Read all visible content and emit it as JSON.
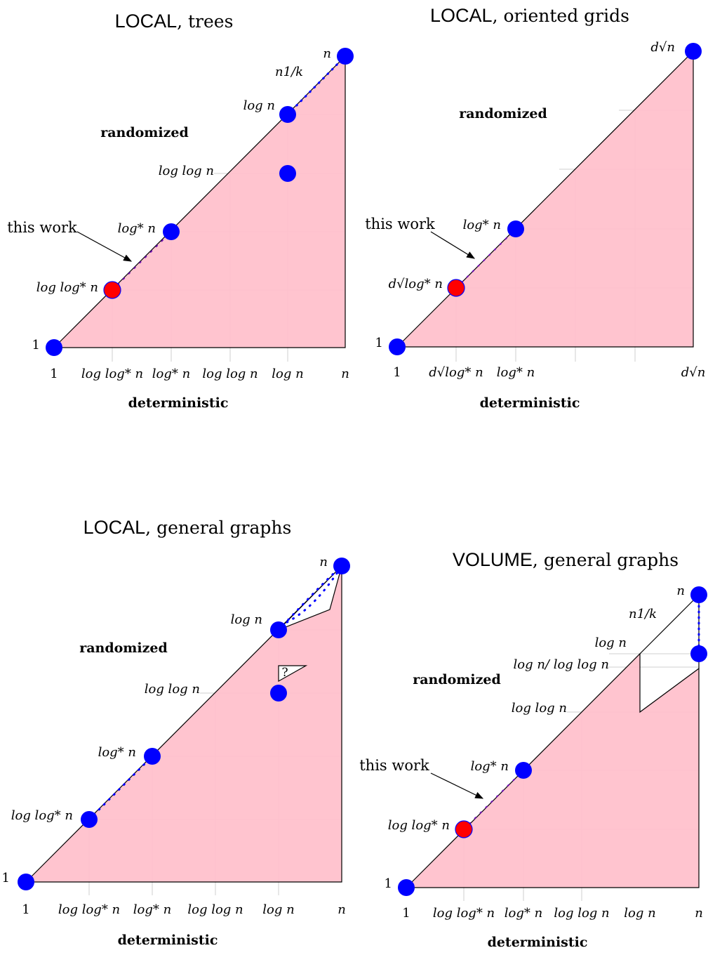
{
  "colors": {
    "region_fill": "#ffc0cb",
    "grid": "#cfcfcf",
    "node_blue": "#0000ff",
    "node_red": "#ff0000",
    "outline": "#000000"
  },
  "panels": [
    {
      "title_main": "LOCAL",
      "title_rest": ", trees",
      "y_caption": "randomized",
      "x_caption": "deterministic",
      "x_ticks": [
        "1",
        "log log* n",
        "log* n",
        "log log n",
        "log n",
        "n"
      ],
      "y_ticks": [
        "1",
        "log log* n",
        "log* n",
        "log log n",
        "log n",
        "n"
      ],
      "extra_label": "n1/k",
      "annotation": "this work"
    },
    {
      "title_main": "LOCAL",
      "title_rest": ", oriented grids",
      "y_caption": "randomized",
      "x_caption": "deterministic",
      "x_ticks": [
        "1",
        "d√log* n",
        "log* n",
        "d√n"
      ],
      "y_ticks": [
        "1",
        "d√log* n",
        "log* n",
        "d√n"
      ],
      "annotation": "this work"
    },
    {
      "title_main": "LOCAL",
      "title_rest": ", general graphs",
      "y_caption": "randomized",
      "x_caption": "deterministic",
      "x_ticks": [
        "1",
        "log log* n",
        "log* n",
        "log log n",
        "log n",
        "n"
      ],
      "y_ticks": [
        "1",
        "log log* n",
        "log* n",
        "log log n",
        "log n",
        "n"
      ],
      "question_mark": "?"
    },
    {
      "title_main": "VOLUME",
      "title_rest": ", general graphs",
      "y_caption": "randomized",
      "x_caption": "deterministic",
      "x_ticks": [
        "1",
        "log log* n",
        "log* n",
        "log log n",
        "log n",
        "n"
      ],
      "y_ticks": [
        "1",
        "log log* n",
        "log* n",
        "log log n",
        "log n/ log log n",
        "log n",
        "n"
      ],
      "extra_label": "n1/k",
      "annotation": "this work"
    }
  ]
}
